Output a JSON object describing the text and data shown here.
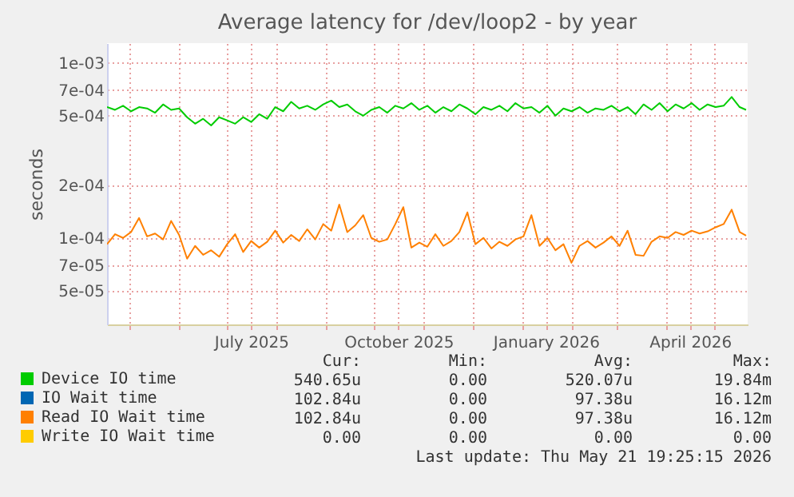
{
  "chart_data": {
    "type": "line",
    "title": "Average latency for /dev/loop2 - by year",
    "ylabel": "seconds",
    "x": [
      "2025-04-17",
      "2025-04-22",
      "2025-04-27",
      "2025-05-02",
      "2025-05-07",
      "2025-05-12",
      "2025-05-17",
      "2025-05-22",
      "2025-05-27",
      "2025-06-01",
      "2025-06-06",
      "2025-06-11",
      "2025-06-16",
      "2025-06-21",
      "2025-06-26",
      "2025-07-01",
      "2025-07-06",
      "2025-07-11",
      "2025-07-16",
      "2025-07-21",
      "2025-07-26",
      "2025-07-31",
      "2025-08-05",
      "2025-08-10",
      "2025-08-15",
      "2025-08-20",
      "2025-08-25",
      "2025-08-30",
      "2025-09-04",
      "2025-09-09",
      "2025-09-14",
      "2025-09-19",
      "2025-09-24",
      "2025-09-29",
      "2025-10-04",
      "2025-10-09",
      "2025-10-14",
      "2025-10-19",
      "2025-10-24",
      "2025-10-29",
      "2025-11-03",
      "2025-11-08",
      "2025-11-13",
      "2025-11-18",
      "2025-11-23",
      "2025-11-28",
      "2025-12-03",
      "2025-12-08",
      "2025-12-13",
      "2025-12-18",
      "2025-12-23",
      "2025-12-28",
      "2026-01-02",
      "2026-01-07",
      "2026-01-12",
      "2026-01-17",
      "2026-01-22",
      "2026-01-27",
      "2026-02-01",
      "2026-02-06",
      "2026-02-11",
      "2026-02-16",
      "2026-02-21",
      "2026-02-26",
      "2026-03-03",
      "2026-03-08",
      "2026-03-13",
      "2026-03-18",
      "2026-03-23",
      "2026-03-28",
      "2026-04-02",
      "2026-04-07",
      "2026-04-12",
      "2026-04-17",
      "2026-04-22",
      "2026-04-27",
      "2026-05-02",
      "2026-05-07",
      "2026-05-12",
      "2026-05-17",
      "2026-05-21"
    ],
    "series": [
      {
        "name": "Device IO time",
        "color": "#00cc00",
        "values": [
          0.00056,
          0.00054,
          0.00057,
          0.00053,
          0.00056,
          0.00055,
          0.00052,
          0.00058,
          0.00054,
          0.00055,
          0.00049,
          0.00045,
          0.00048,
          0.00044,
          0.00049,
          0.00047,
          0.00045,
          0.00049,
          0.00046,
          0.00051,
          0.00048,
          0.00056,
          0.00053,
          0.0006,
          0.00055,
          0.00057,
          0.00054,
          0.00058,
          0.00061,
          0.00056,
          0.00058,
          0.00053,
          0.0005,
          0.00054,
          0.00056,
          0.00052,
          0.00057,
          0.00055,
          0.00059,
          0.00054,
          0.00057,
          0.00052,
          0.00056,
          0.00053,
          0.00058,
          0.00055,
          0.00051,
          0.00056,
          0.00054,
          0.00057,
          0.00053,
          0.00059,
          0.00055,
          0.00056,
          0.00052,
          0.00057,
          0.0005,
          0.00055,
          0.00053,
          0.00056,
          0.00052,
          0.00055,
          0.00054,
          0.00057,
          0.00053,
          0.00056,
          0.00051,
          0.00058,
          0.00054,
          0.00059,
          0.00053,
          0.00058,
          0.00055,
          0.00059,
          0.00054,
          0.00058,
          0.00056,
          0.00057,
          0.00064,
          0.00056,
          0.00054
        ]
      },
      {
        "name": "IO Wait time",
        "color": "#0066b3",
        "values": [
          null,
          null,
          null,
          null,
          null,
          null,
          null,
          null,
          null,
          null,
          null,
          null,
          null,
          null,
          null,
          null,
          null,
          null,
          null,
          null,
          null,
          null,
          null,
          null,
          null,
          null,
          null,
          null,
          null,
          null,
          null,
          null,
          null,
          null,
          null,
          null,
          null,
          null,
          null,
          null,
          null,
          null,
          null,
          null,
          null,
          null,
          null,
          null,
          null,
          null,
          null,
          null,
          null,
          null,
          null,
          null,
          null,
          null,
          null,
          null,
          null,
          null,
          null,
          null,
          null,
          null,
          null,
          null,
          null,
          null,
          null,
          null,
          null,
          null,
          null,
          null,
          null,
          null,
          null,
          null,
          null
        ]
      },
      {
        "name": "Read IO Wait time",
        "color": "#ff8000",
        "values": [
          9.2e-05,
          0.000105,
          0.0001,
          0.000108,
          0.00013,
          0.000102,
          0.000106,
          9.8e-05,
          0.000125,
          0.000104,
          7.6e-05,
          9e-05,
          8e-05,
          8.5e-05,
          7.8e-05,
          9.2e-05,
          0.000105,
          8.3e-05,
          9.6e-05,
          8.8e-05,
          9.5e-05,
          0.00011,
          9.4e-05,
          0.000104,
          9.6e-05,
          0.000112,
          9.8e-05,
          0.00012,
          0.00011,
          0.000155,
          0.000108,
          0.000118,
          0.000135,
          0.0001,
          9.5e-05,
          9.8e-05,
          0.00012,
          0.00015,
          8.8e-05,
          9.4e-05,
          8.9e-05,
          0.000105,
          9e-05,
          9.6e-05,
          0.000108,
          0.00014,
          9.2e-05,
          0.0001,
          8.7e-05,
          9.5e-05,
          9e-05,
          9.8e-05,
          0.000102,
          0.000135,
          9e-05,
          0.0001,
          8.5e-05,
          9.2e-05,
          7.2e-05,
          9e-05,
          9.6e-05,
          8.8e-05,
          9.4e-05,
          0.000102,
          9e-05,
          0.00011,
          8e-05,
          7.9e-05,
          9.5e-05,
          0.000102,
          0.0001,
          0.000108,
          0.000104,
          0.00011,
          0.000106,
          0.000109,
          0.000115,
          0.00012,
          0.000145,
          0.000108,
          0.000103
        ]
      },
      {
        "name": "Write IO Wait time",
        "color": "#ffcc00",
        "values": [
          null,
          null,
          null,
          null,
          null,
          null,
          null,
          null,
          null,
          null,
          null,
          null,
          null,
          null,
          null,
          null,
          null,
          null,
          null,
          null,
          null,
          null,
          null,
          null,
          null,
          null,
          null,
          null,
          null,
          null,
          null,
          null,
          null,
          null,
          null,
          null,
          null,
          null,
          null,
          null,
          null,
          null,
          null,
          null,
          null,
          null,
          null,
          null,
          null,
          null,
          null,
          null,
          null,
          null,
          null,
          null,
          null,
          null,
          null,
          null,
          null,
          null,
          null,
          null,
          null,
          null,
          null,
          null,
          null,
          null,
          null,
          null,
          null,
          null,
          null,
          null,
          null,
          null,
          null,
          null,
          null
        ]
      }
    ],
    "xlim": [
      "2025-04-17",
      "2026-05-22"
    ],
    "xticks": [
      {
        "value": "2025-05-01",
        "label": null
      },
      {
        "value": "2025-06-01",
        "label": null
      },
      {
        "value": "2025-07-01",
        "label": null
      },
      {
        "value": "2025-07-16",
        "label": "July 2025"
      },
      {
        "value": "2025-08-01",
        "label": null
      },
      {
        "value": "2025-09-01",
        "label": null
      },
      {
        "value": "2025-10-01",
        "label": null
      },
      {
        "value": "2025-10-16",
        "label": "October 2025"
      },
      {
        "value": "2025-11-01",
        "label": null
      },
      {
        "value": "2025-12-01",
        "label": null
      },
      {
        "value": "2026-01-01",
        "label": null
      },
      {
        "value": "2026-01-16",
        "label": "January 2026"
      },
      {
        "value": "2026-02-01",
        "label": null
      },
      {
        "value": "2026-03-01",
        "label": null
      },
      {
        "value": "2026-04-01",
        "label": null
      },
      {
        "value": "2026-04-16",
        "label": "April 2026"
      },
      {
        "value": "2026-05-01",
        "label": null
      }
    ],
    "ylim": [
      3.2e-05,
      0.0013
    ],
    "yticks": [
      {
        "value": 5e-05,
        "label": "5e-05"
      },
      {
        "value": 7e-05,
        "label": "7e-05"
      },
      {
        "value": 0.0001,
        "label": "1e-04"
      },
      {
        "value": 0.0002,
        "label": "2e-04"
      },
      {
        "value": 0.0005,
        "label": "5e-04"
      },
      {
        "value": 0.0007,
        "label": "7e-04"
      },
      {
        "value": 0.001,
        "label": "1e-03"
      }
    ],
    "log": "y",
    "grid": true,
    "legend": "bottom left",
    "annotations": [
      "Cur:",
      "Min:",
      "Avg:",
      "Max:",
      "540.65u",
      "0.00",
      "520.07u",
      "19.84m",
      "102.84u",
      "0.00",
      "97.38u",
      "16.12m",
      "102.84u",
      "0.00",
      "97.38u",
      "16.12m",
      "0.00",
      "0.00",
      "0.00",
      "0.00",
      "Last update: Thu May 21 19:25:15 2026"
    ]
  }
}
